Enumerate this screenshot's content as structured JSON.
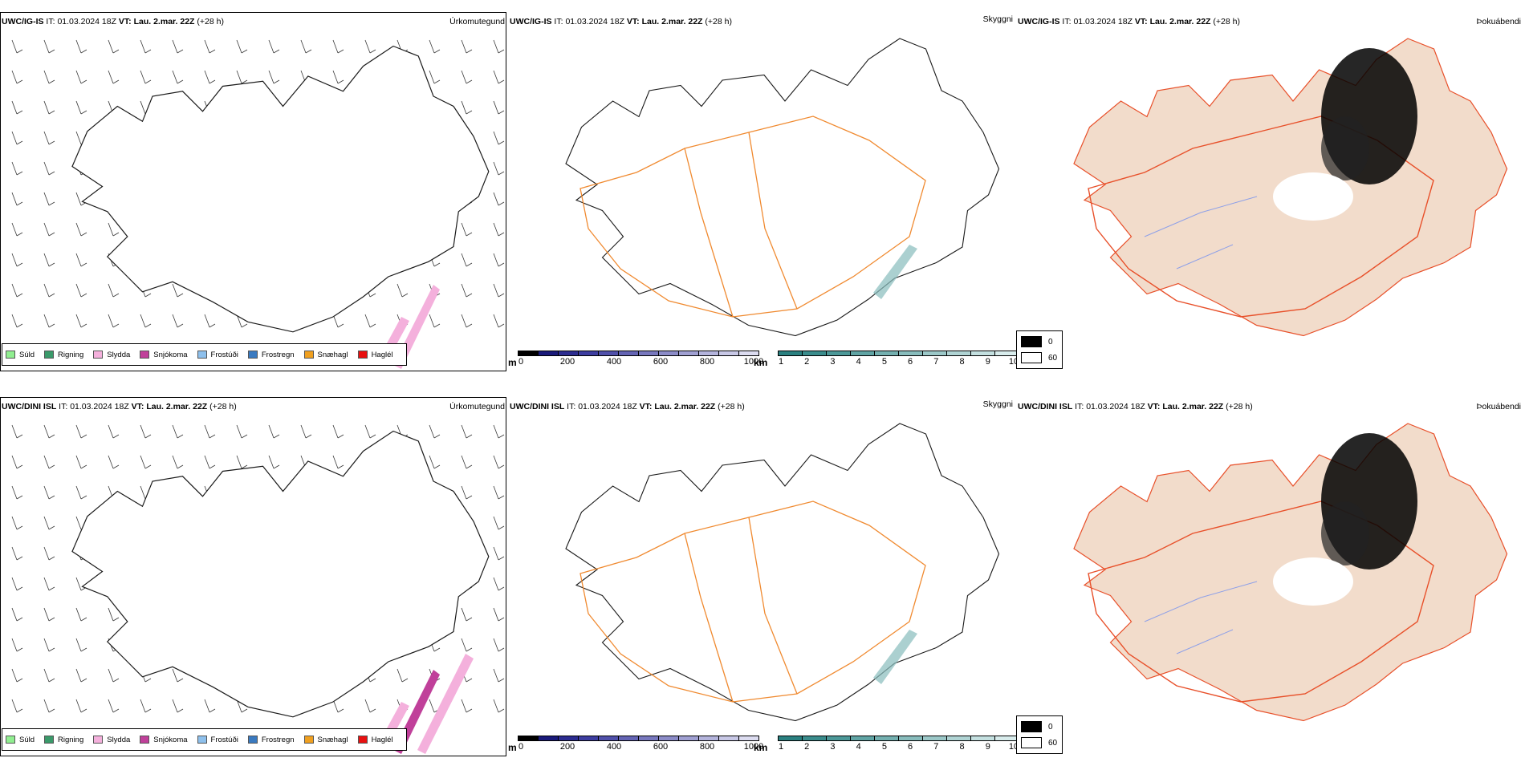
{
  "rows": [
    {
      "model": "UWC/IG-IS",
      "it_label": "IT:",
      "it_value": "01.03.2024 18Z",
      "vt_label": "VT:",
      "vt_value": "Lau. 2.mar. 22Z",
      "lead": "(+28 h)"
    },
    {
      "model": "UWC/DINI ISL",
      "it_label": "IT:",
      "it_value": "01.03.2024 18Z",
      "vt_label": "VT:",
      "vt_value": "Lau. 2.mar. 22Z",
      "lead": "(+28 h)"
    }
  ],
  "panels": {
    "precip_type": {
      "corner": "Úrkomutegund"
    },
    "visibility": {
      "corner": "Skyggni"
    },
    "fog": {
      "corner": "Þokuábendi"
    }
  },
  "precip_legend": [
    {
      "label": "Súld",
      "color": "#90ee90"
    },
    {
      "label": "Rigning",
      "color": "#3a9a6a"
    },
    {
      "label": "Slydda",
      "color": "#f4b0dc"
    },
    {
      "label": "Snjókoma",
      "color": "#c0409a"
    },
    {
      "label": "Frostúði",
      "color": "#8ec0ec"
    },
    {
      "label": "Frostregn",
      "color": "#3a7ac0"
    },
    {
      "label": "Snæhagl",
      "color": "#f0a020"
    },
    {
      "label": "Haglél",
      "color": "#e81010"
    }
  ],
  "ceiling_bar": {
    "unit": "m",
    "ticks": [
      "0",
      "200",
      "400",
      "600",
      "800",
      "1000"
    ],
    "colors": [
      "#000000",
      "#1a1a7a",
      "#2c2c90",
      "#3d3da0",
      "#5050aa",
      "#6464b4",
      "#7878be",
      "#8c8cc8",
      "#a0a0d2",
      "#b4b4dc",
      "#c8c8e6",
      "#dcdcf0"
    ]
  },
  "visibility_bar": {
    "unit": "km",
    "ticks": [
      "1",
      "2",
      "3",
      "4",
      "5",
      "6",
      "7",
      "8",
      "9",
      "10"
    ],
    "colors": [
      "#2a8080",
      "#3a8c8c",
      "#4c9898",
      "#60a4a4",
      "#74b0b0",
      "#88bcbc",
      "#9cc8c8",
      "#b0d4d4",
      "#c4e0e0",
      "#d8ecec"
    ]
  },
  "fog_legend": [
    {
      "label": "0",
      "color": "#000000"
    },
    {
      "label": "60",
      "color": "#ffffff"
    }
  ],
  "colors": {
    "coast": "#1a1a1a",
    "roads": "#f08a30",
    "land_fog": "#f2dccb",
    "roads_fog": "#e8502a",
    "rivers": "#8ea0e8"
  }
}
